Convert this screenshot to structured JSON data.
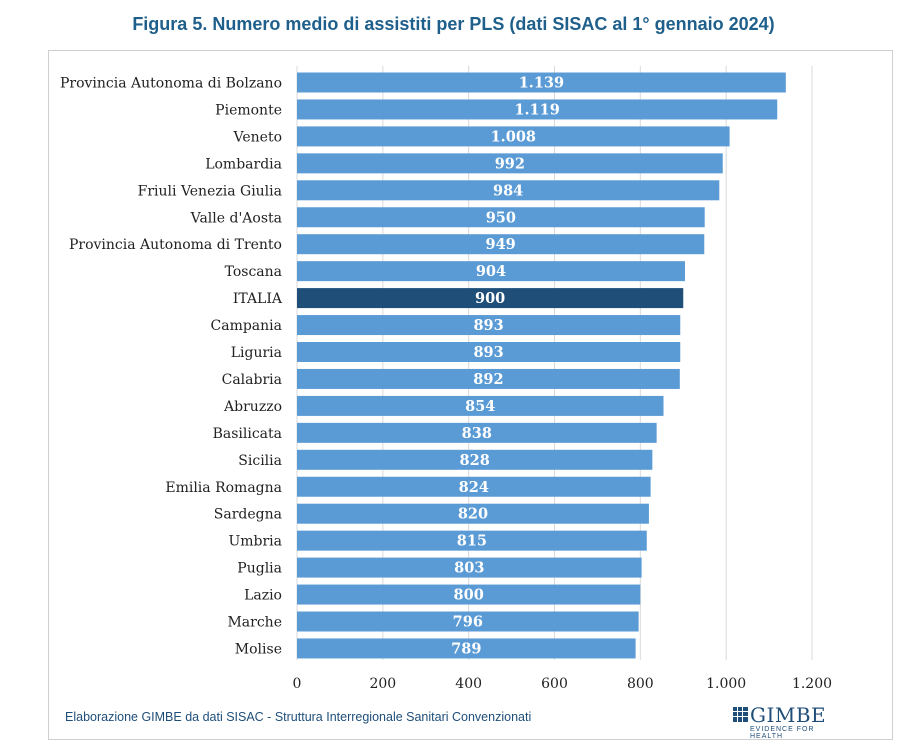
{
  "title": "Figura 5. Numero medio di assistiti per PLS (dati SISAC al 1° gennaio 2024)",
  "source": "Elaborazione GIMBE da dati SISAC - Struttura Interregionale Sanitari Convenzionati",
  "logo": {
    "name": "GIMBE",
    "tagline": "EVIDENCE FOR HEALTH"
  },
  "colors": {
    "bar": "#5b9bd5",
    "highlight": "#1f4e79",
    "title": "#1f5f8b"
  },
  "chart_data": {
    "type": "bar",
    "orientation": "horizontal",
    "title": "Figura 5. Numero medio di assistiti per PLS (dati SISAC al 1° gennaio 2024)",
    "xlabel": "",
    "ylabel": "",
    "xlim": [
      0,
      1200
    ],
    "grid": true,
    "highlight": "ITALIA",
    "ticks": [
      "0",
      "200",
      "400",
      "600",
      "800",
      "1.000",
      "1.200"
    ],
    "categories": [
      "Provincia Autonoma di Bolzano",
      "Piemonte",
      "Veneto",
      "Lombardia",
      "Friuli Venezia Giulia",
      "Valle d'Aosta",
      "Provincia Autonoma di Trento",
      "Toscana",
      "ITALIA",
      "Campania",
      "Liguria",
      "Calabria",
      "Abruzzo",
      "Basilicata",
      "Sicilia",
      "Emilia Romagna",
      "Sardegna",
      "Umbria",
      "Puglia",
      "Lazio",
      "Marche",
      "Molise"
    ],
    "values": [
      1139,
      1119,
      1008,
      992,
      984,
      950,
      949,
      904,
      900,
      893,
      893,
      892,
      854,
      838,
      828,
      824,
      820,
      815,
      803,
      800,
      796,
      789
    ],
    "labels": [
      "1.139",
      "1.119",
      "1.008",
      "992",
      "984",
      "950",
      "949",
      "904",
      "900",
      "893",
      "893",
      "892",
      "854",
      "838",
      "828",
      "824",
      "820",
      "815",
      "803",
      "800",
      "796",
      "789"
    ]
  }
}
